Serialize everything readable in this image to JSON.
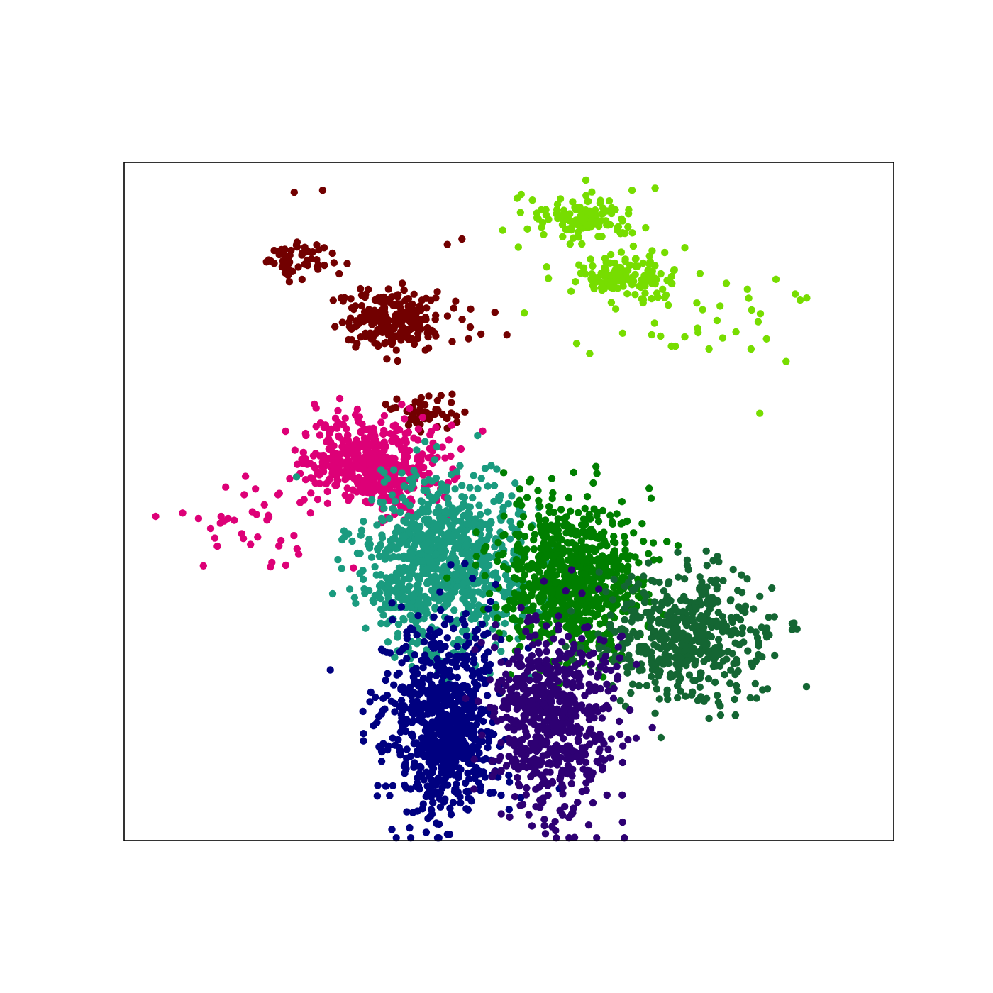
{
  "chart_data": {
    "type": "scatter",
    "title": "",
    "xlabel": "",
    "ylabel": "",
    "xlim": [
      0,
      100
    ],
    "ylim": [
      0,
      100
    ],
    "grid": false,
    "legend": "none",
    "ticks": "none",
    "series": [
      {
        "color": "#720000",
        "clusters": [
          {
            "cx": 22.6,
            "cy": 85.7,
            "sx": 2.4,
            "sy": 1.7,
            "n": 55
          },
          {
            "cx": 35.0,
            "cy": 76.8,
            "sx": 3.6,
            "sy": 2.2,
            "n": 240
          },
          {
            "cx": 39.6,
            "cy": 63.2,
            "sx": 2.6,
            "sy": 1.5,
            "n": 45
          }
        ],
        "points": [
          [
            22.1,
            95.6
          ],
          [
            25.8,
            95.9
          ],
          [
            43.9,
            88.7
          ],
          [
            42.0,
            87.9
          ],
          [
            40.5,
            80.0
          ],
          [
            33.0,
            72.9
          ],
          [
            28.2,
            80.0
          ],
          [
            32.4,
            74.3
          ]
        ]
      },
      {
        "color": "#77dd00",
        "clusters": [
          {
            "cx": 59.1,
            "cy": 91.5,
            "sx": 3.3,
            "sy": 1.7,
            "n": 120
          },
          {
            "cx": 65.0,
            "cy": 82.9,
            "sx": 3.4,
            "sy": 1.7,
            "n": 130
          },
          {
            "cx": 77.0,
            "cy": 77.0,
            "sx": 5.0,
            "sy": 3.5,
            "n": 26
          }
        ],
        "points": [
          [
            60.0,
            97.4
          ],
          [
            66.0,
            95.9
          ],
          [
            69.0,
            96.2
          ],
          [
            51.5,
            92.6
          ],
          [
            54.2,
            93.0
          ],
          [
            49.2,
            90.0
          ],
          [
            54.9,
            84.6
          ],
          [
            52.0,
            77.8
          ],
          [
            58.8,
            73.3
          ],
          [
            60.5,
            71.8
          ],
          [
            82.6,
            63.0
          ],
          [
            87.2,
            80.6
          ],
          [
            88.7,
            80.0
          ],
          [
            81.0,
            81.3
          ],
          [
            82.4,
            76.5
          ],
          [
            76.0,
            72.5
          ]
        ]
      },
      {
        "color": "#dd0077",
        "clusters": [
          {
            "cx": 32.2,
            "cy": 55.5,
            "sx": 4.6,
            "sy": 3.3,
            "n": 520
          },
          {
            "cx": 17.0,
            "cy": 47.0,
            "sx": 4.8,
            "sy": 4.0,
            "n": 26
          }
        ],
        "points": [
          [
            4.1,
            47.8
          ],
          [
            7.6,
            48.3
          ],
          [
            11.8,
            44.6
          ],
          [
            10.3,
            40.5
          ],
          [
            19.2,
            41.0
          ],
          [
            21.0,
            40.6
          ],
          [
            12.6,
            47.8
          ],
          [
            15.6,
            51.0
          ],
          [
            20.0,
            51.0
          ],
          [
            29.8,
            40.2
          ]
        ]
      },
      {
        "color": "#1a9b7f",
        "clusters": [
          {
            "cx": 41.5,
            "cy": 41.0,
            "sx": 5.3,
            "sy": 6.2,
            "n": 850
          }
        ],
        "points": [
          [
            47.7,
            55.3
          ],
          [
            50.8,
            52.7
          ],
          [
            35.4,
            38.8
          ]
        ]
      },
      {
        "color": "#007f00",
        "clusters": [
          {
            "cx": 58.2,
            "cy": 38.5,
            "sx": 4.6,
            "sy": 5.5,
            "n": 760
          }
        ]
      },
      {
        "color": "#146633",
        "clusters": [
          {
            "cx": 72.8,
            "cy": 30.0,
            "sx": 5.5,
            "sy": 4.8,
            "n": 500
          }
        ],
        "points": [
          [
            82.6,
            36.0
          ],
          [
            84.5,
            33.0
          ],
          [
            76.0,
            18.0
          ],
          [
            77.5,
            18.5
          ]
        ]
      },
      {
        "color": "#000080",
        "clusters": [
          {
            "cx": 41.3,
            "cy": 17.5,
            "sx": 3.5,
            "sy": 7.1,
            "n": 780
          }
        ],
        "points": [
          [
            36.6,
            7.8
          ],
          [
            40.0,
            3.9
          ],
          [
            34.0,
            8.0
          ]
        ]
      },
      {
        "color": "#2e0073",
        "clusters": [
          {
            "cx": 55.5,
            "cy": 17.8,
            "sx": 4.0,
            "sy": 7.0,
            "n": 640
          }
        ],
        "points": [
          [
            51.8,
            5.3
          ],
          [
            53.5,
            5.0
          ]
        ]
      }
    ]
  }
}
